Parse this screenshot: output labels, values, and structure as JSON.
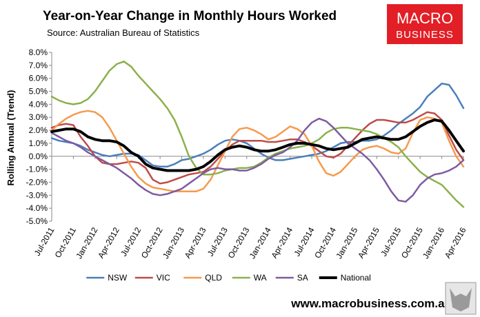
{
  "chart_data": {
    "type": "line",
    "title": "Year-on-Year Change in Monthly Hours Worked",
    "subtitle": "Source: Australian Bureau of Statistics",
    "ylabel": "Rolling Annual (Trend)",
    "logo": [
      "MACRO",
      "BUSINESS"
    ],
    "footer": "www.macrobusiness.com.au",
    "categories": [
      "Jul-2011",
      null,
      null,
      "Oct-2011",
      null,
      null,
      "Jan-2012",
      null,
      null,
      "Apr-2012",
      null,
      null,
      "Jul-2012",
      null,
      null,
      "Oct-2012",
      null,
      null,
      "Jan-2013",
      null,
      null,
      "Apr-2013",
      null,
      null,
      "Jul-2013",
      null,
      null,
      "Oct-2013",
      null,
      null,
      "Jan-2014",
      null,
      null,
      "Apr-2014",
      null,
      null,
      "Jul-2014",
      null,
      null,
      "Oct-2014",
      null,
      null,
      "Jan-2015",
      null,
      null,
      "Apr-2015",
      null,
      null,
      "Jul-2015",
      null,
      null,
      "Oct-2015",
      null,
      null,
      "Jan-2016",
      null,
      null,
      "Apr-2016"
    ],
    "ylim": [
      -5,
      8
    ],
    "yticks": [
      {
        "value": -5,
        "label": "-5.0%"
      },
      {
        "value": -4,
        "label": "-4.0%"
      },
      {
        "value": -3,
        "label": "-3.0%"
      },
      {
        "value": -2,
        "label": "-2.0%"
      },
      {
        "value": -1,
        "label": "-1.0%"
      },
      {
        "value": 0,
        "label": "0.0%"
      },
      {
        "value": 1,
        "label": "1.0%"
      },
      {
        "value": 2,
        "label": "2.0%"
      },
      {
        "value": 3,
        "label": "3.0%"
      },
      {
        "value": 4,
        "label": "4.0%"
      },
      {
        "value": 5,
        "label": "5.0%"
      },
      {
        "value": 6,
        "label": "6.0%"
      },
      {
        "value": 7,
        "label": "7.0%"
      },
      {
        "value": 8,
        "label": "8.0%"
      }
    ],
    "grid": false,
    "legend": "bottom",
    "series": [
      {
        "name": "NSW",
        "color": "#4a7ebb",
        "width": 2.5,
        "values": [
          1.4,
          1.2,
          1.1,
          1.0,
          0.8,
          0.5,
          0.3,
          0.1,
          0.0,
          0.1,
          0.2,
          0.2,
          0.1,
          -0.3,
          -0.7,
          -0.8,
          -0.8,
          -0.6,
          -0.3,
          -0.2,
          0.0,
          0.2,
          0.5,
          0.9,
          1.2,
          1.3,
          1.2,
          1.0,
          0.6,
          0.2,
          -0.1,
          -0.3,
          -0.3,
          -0.2,
          -0.1,
          0.0,
          0.1,
          0.2,
          0.4,
          0.7,
          1.0,
          1.1,
          1.1,
          1.2,
          1.2,
          1.3,
          1.6,
          2.0,
          2.5,
          2.9,
          3.3,
          3.8,
          4.6,
          5.1,
          5.6,
          5.5,
          4.7,
          3.7
        ]
      },
      {
        "name": "VIC",
        "color": "#be4b48",
        "width": 2.5,
        "values": [
          2.2,
          2.4,
          2.5,
          2.4,
          1.5,
          0.8,
          0.0,
          -0.5,
          -0.6,
          -0.6,
          -0.5,
          -0.4,
          -0.5,
          -0.9,
          -1.8,
          -2.1,
          -2.0,
          -1.8,
          -1.6,
          -1.4,
          -1.3,
          -1.2,
          -0.8,
          -0.2,
          0.4,
          0.9,
          1.2,
          1.2,
          1.2,
          1.2,
          1.1,
          1.1,
          1.2,
          1.3,
          1.3,
          1.1,
          0.8,
          0.4,
          0.0,
          -0.1,
          0.2,
          0.8,
          1.4,
          2.0,
          2.5,
          2.8,
          2.8,
          2.7,
          2.6,
          2.6,
          2.8,
          3.1,
          3.4,
          3.3,
          2.8,
          1.6,
          0.5,
          -0.3
        ]
      },
      {
        "name": "QLD",
        "color": "#f59a4c",
        "width": 2.5,
        "values": [
          2.0,
          2.5,
          2.9,
          3.2,
          3.4,
          3.5,
          3.4,
          3.0,
          2.2,
          1.2,
          0.2,
          -0.8,
          -1.6,
          -2.1,
          -2.4,
          -2.5,
          -2.6,
          -2.7,
          -2.7,
          -2.7,
          -2.7,
          -2.5,
          -1.8,
          -0.7,
          0.4,
          1.5,
          2.1,
          2.2,
          2.0,
          1.7,
          1.3,
          1.5,
          1.9,
          2.3,
          2.1,
          1.7,
          0.8,
          -0.4,
          -1.3,
          -1.5,
          -1.2,
          -0.6,
          0.0,
          0.5,
          0.7,
          0.8,
          0.6,
          0.3,
          0.2,
          0.6,
          1.8,
          2.8,
          3.0,
          2.9,
          2.6,
          1.2,
          0.0,
          -0.8
        ]
      },
      {
        "name": "WA",
        "color": "#8cb04b",
        "width": 2.5,
        "values": [
          4.6,
          4.3,
          4.1,
          4.0,
          4.1,
          4.4,
          5.0,
          5.8,
          6.6,
          7.1,
          7.3,
          6.9,
          6.2,
          5.6,
          5.0,
          4.4,
          3.7,
          2.8,
          1.5,
          0.0,
          -0.9,
          -1.4,
          -1.4,
          -1.3,
          -1.1,
          -1.0,
          -0.9,
          -0.9,
          -0.8,
          -0.5,
          -0.1,
          0.2,
          0.4,
          0.6,
          0.7,
          0.8,
          1.0,
          1.3,
          1.8,
          2.1,
          2.2,
          2.2,
          2.1,
          2.0,
          1.9,
          1.7,
          1.4,
          1.1,
          0.7,
          0.0,
          -0.6,
          -1.2,
          -1.6,
          -1.9,
          -2.2,
          -2.8,
          -3.4,
          -3.9
        ]
      },
      {
        "name": "SA",
        "color": "#7d5ba1",
        "width": 2.5,
        "values": [
          1.8,
          1.5,
          1.2,
          1.0,
          0.7,
          0.3,
          0.0,
          -0.3,
          -0.6,
          -0.9,
          -1.3,
          -1.7,
          -2.2,
          -2.6,
          -2.9,
          -3.0,
          -2.9,
          -2.7,
          -2.5,
          -2.1,
          -1.7,
          -1.3,
          -1.0,
          -0.9,
          -1.0,
          -1.0,
          -1.1,
          -1.1,
          -0.9,
          -0.6,
          -0.2,
          0.1,
          0.3,
          0.7,
          1.2,
          2.0,
          2.6,
          2.9,
          2.7,
          2.2,
          1.6,
          1.0,
          0.6,
          0.2,
          -0.3,
          -1.0,
          -1.8,
          -2.7,
          -3.4,
          -3.5,
          -3.0,
          -2.2,
          -1.7,
          -1.4,
          -1.3,
          -1.1,
          -0.8,
          -0.3
        ]
      },
      {
        "name": "National",
        "color": "#000000",
        "width": 4,
        "values": [
          1.9,
          2.0,
          2.1,
          2.1,
          1.9,
          1.5,
          1.3,
          1.2,
          1.2,
          1.1,
          0.8,
          0.3,
          0.0,
          -0.6,
          -0.9,
          -1.0,
          -1.1,
          -1.1,
          -1.1,
          -1.1,
          -1.0,
          -0.8,
          -0.4,
          0.1,
          0.5,
          0.7,
          0.8,
          0.7,
          0.5,
          0.4,
          0.4,
          0.5,
          0.7,
          0.9,
          1.0,
          1.0,
          0.9,
          0.8,
          0.6,
          0.5,
          0.6,
          0.7,
          1.0,
          1.3,
          1.4,
          1.5,
          1.4,
          1.3,
          1.3,
          1.5,
          1.9,
          2.3,
          2.6,
          2.8,
          2.7,
          2.0,
          1.2,
          0.4
        ]
      }
    ]
  }
}
